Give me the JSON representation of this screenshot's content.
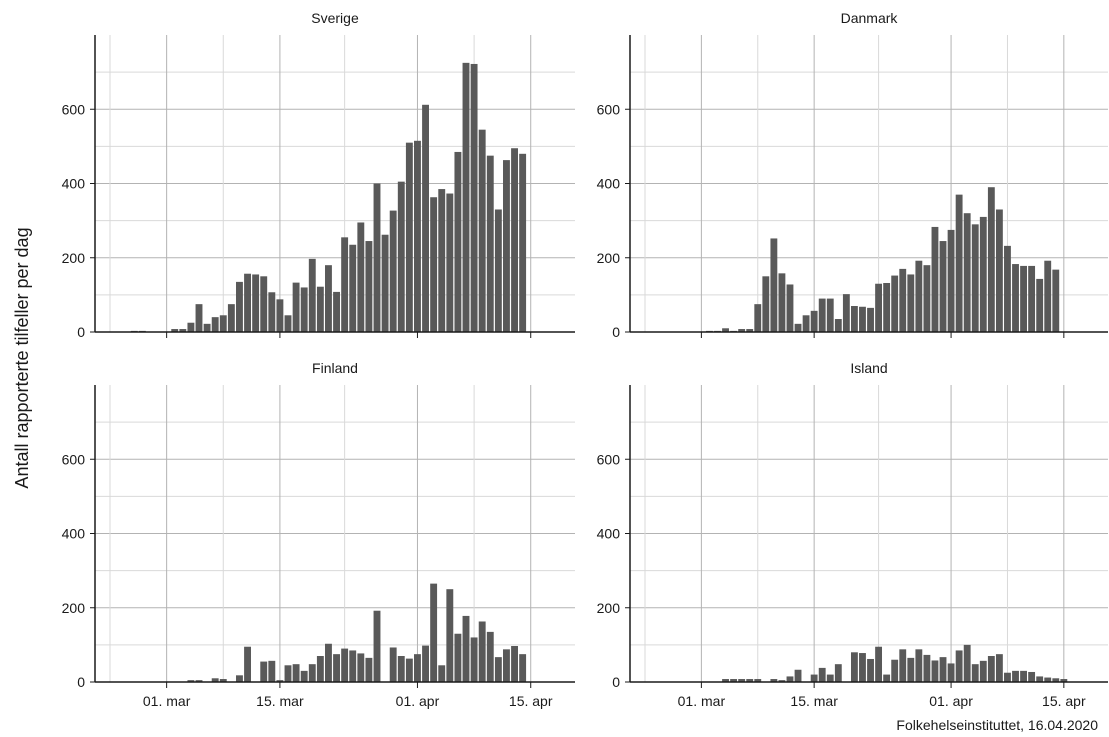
{
  "figure": {
    "ylabel": "Antall rapporterte tilfeller per dag",
    "credit": "Folkehelseinstituttet, 16.04.2020"
  },
  "chart_data": [
    {
      "type": "bar",
      "title": "Sverige",
      "start_date": "2020-02-22",
      "ylim": [
        0,
        800
      ],
      "yticks": [
        0,
        200,
        400,
        600
      ],
      "xticks": [
        {
          "date": "2020-03-01",
          "label": "01. mar"
        },
        {
          "date": "2020-03-15",
          "label": "15. mar"
        },
        {
          "date": "2020-04-01",
          "label": "01. apr"
        },
        {
          "date": "2020-04-15",
          "label": "15. apr"
        }
      ],
      "bar_color": "#595959",
      "grid": true,
      "values": [
        0,
        0,
        0,
        0,
        3,
        3,
        0,
        0,
        0,
        8,
        8,
        25,
        75,
        22,
        40,
        45,
        75,
        135,
        157,
        155,
        150,
        107,
        88,
        45,
        133,
        120,
        197,
        122,
        180,
        108,
        255,
        235,
        295,
        245,
        400,
        262,
        327,
        405,
        510,
        515,
        612,
        363,
        385,
        373,
        485,
        725,
        722,
        545,
        475,
        330,
        463,
        495,
        480
      ]
    },
    {
      "type": "bar",
      "title": "Danmark",
      "start_date": "2020-02-22",
      "ylim": [
        0,
        800
      ],
      "yticks": [
        0,
        200,
        400,
        600
      ],
      "xticks": [
        {
          "date": "2020-03-01",
          "label": "01. mar"
        },
        {
          "date": "2020-03-15",
          "label": "15. mar"
        },
        {
          "date": "2020-04-01",
          "label": "01. apr"
        },
        {
          "date": "2020-04-15",
          "label": "15. apr"
        }
      ],
      "bar_color": "#595959",
      "grid": true,
      "values": [
        0,
        0,
        0,
        0,
        0,
        0,
        0,
        0,
        0,
        3,
        3,
        10,
        3,
        8,
        8,
        75,
        150,
        252,
        158,
        128,
        22,
        45,
        57,
        90,
        90,
        35,
        102,
        70,
        68,
        65,
        130,
        132,
        152,
        170,
        155,
        192,
        180,
        283,
        245,
        275,
        370,
        320,
        290,
        310,
        390,
        330,
        232,
        183,
        178,
        178,
        143,
        192,
        168
      ]
    },
    {
      "type": "bar",
      "title": "Finland",
      "start_date": "2020-02-22",
      "ylim": [
        0,
        800
      ],
      "yticks": [
        0,
        200,
        400,
        600
      ],
      "xticks": [
        {
          "date": "2020-03-01",
          "label": "01. mar"
        },
        {
          "date": "2020-03-15",
          "label": "15. mar"
        },
        {
          "date": "2020-04-01",
          "label": "01. apr"
        },
        {
          "date": "2020-04-15",
          "label": "15. apr"
        }
      ],
      "bar_color": "#595959",
      "grid": true,
      "values": [
        0,
        0,
        0,
        0,
        0,
        0,
        0,
        0,
        0,
        0,
        0,
        5,
        5,
        0,
        10,
        8,
        0,
        18,
        95,
        0,
        55,
        57,
        5,
        45,
        48,
        30,
        48,
        70,
        103,
        75,
        90,
        85,
        77,
        65,
        192,
        0,
        93,
        70,
        63,
        75,
        98,
        265,
        45,
        250,
        130,
        178,
        120,
        163,
        135,
        67,
        88,
        97,
        75
      ]
    },
    {
      "type": "bar",
      "title": "Island",
      "start_date": "2020-02-22",
      "ylim": [
        0,
        800
      ],
      "yticks": [
        0,
        200,
        400,
        600
      ],
      "xticks": [
        {
          "date": "2020-03-01",
          "label": "01. mar"
        },
        {
          "date": "2020-03-15",
          "label": "15. mar"
        },
        {
          "date": "2020-04-01",
          "label": "01. apr"
        },
        {
          "date": "2020-04-15",
          "label": "15. apr"
        }
      ],
      "bar_color": "#595959",
      "grid": true,
      "values": [
        0,
        0,
        0,
        0,
        0,
        0,
        0,
        0,
        0,
        0,
        0,
        8,
        8,
        8,
        8,
        8,
        0,
        8,
        5,
        15,
        33,
        0,
        20,
        38,
        20,
        48,
        0,
        80,
        78,
        62,
        95,
        20,
        60,
        88,
        65,
        88,
        73,
        58,
        67,
        50,
        85,
        100,
        48,
        57,
        70,
        75,
        25,
        30,
        30,
        27,
        15,
        12,
        10,
        8
      ]
    }
  ]
}
